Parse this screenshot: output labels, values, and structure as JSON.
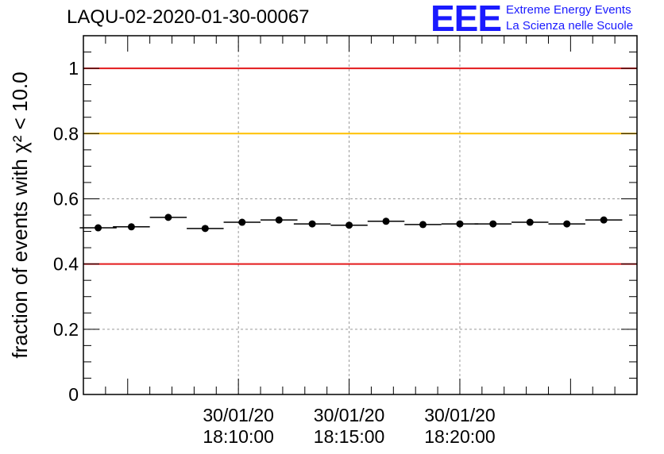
{
  "title": "LAQU-02-2020-01-30-00067",
  "logo": {
    "mark": "EEE",
    "line1": "Extreme Energy Events",
    "line2": "La Scienza nelle Scuole"
  },
  "colors": {
    "red": "#e31a1c",
    "yellow": "#ffc000",
    "logo_blue": "#1a1aff"
  },
  "chart_data": {
    "type": "scatter",
    "ylabel": "fraction of events with χ² < 10.0",
    "ylim": [
      0,
      1.1
    ],
    "yticks": [
      0,
      0.2,
      0.4,
      0.6,
      0.8,
      1
    ],
    "ytick_labels": [
      "0",
      "0.2",
      "0.4",
      "0.6",
      "0.8",
      "1"
    ],
    "xlim_seconds": [
      -420,
      1080
    ],
    "xtick_seconds": [
      0,
      300,
      600
    ],
    "xtick_labels": [
      [
        "30/01/20",
        "18:10:00"
      ],
      [
        "30/01/20",
        "18:15:00"
      ],
      [
        "30/01/20",
        "18:20:00"
      ]
    ],
    "grid": true,
    "reference_lines": [
      {
        "y": 1.0,
        "color": "red"
      },
      {
        "y": 0.8,
        "color": "yellow"
      },
      {
        "y": 0.4,
        "color": "red"
      }
    ],
    "series": [
      {
        "x_seconds": [
          -380,
          -290,
          -190,
          -90,
          10,
          110,
          200,
          300,
          400,
          500,
          600,
          690,
          790,
          890,
          990
        ],
        "x_halfwidth_seconds": 50,
        "values": [
          0.511,
          0.514,
          0.543,
          0.509,
          0.528,
          0.535,
          0.523,
          0.519,
          0.531,
          0.521,
          0.523,
          0.523,
          0.528,
          0.523,
          0.535
        ]
      }
    ]
  }
}
